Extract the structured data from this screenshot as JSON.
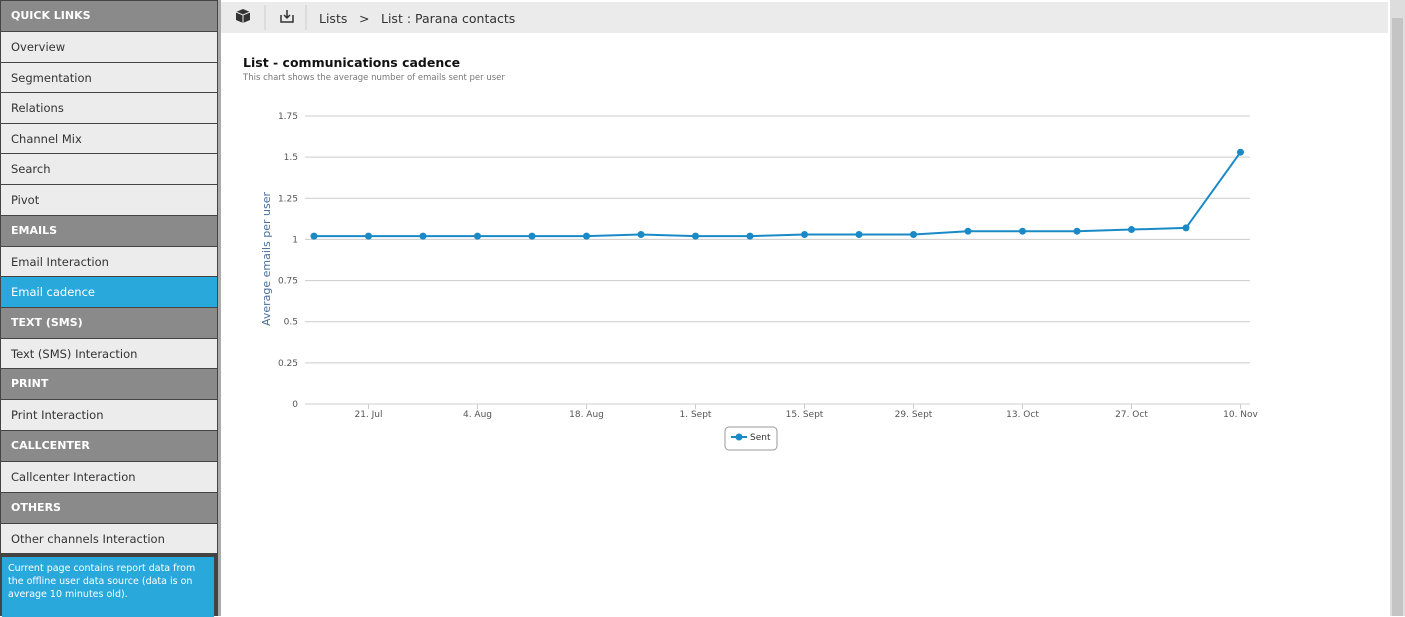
{
  "sidebar": {
    "groups": [
      {
        "title": "QUICK LINKS",
        "items": [
          "Overview",
          "Segmentation",
          "Relations",
          "Channel Mix",
          "Search",
          "Pivot"
        ]
      },
      {
        "title": "EMAILS",
        "items": [
          "Email Interaction",
          "Email cadence"
        ]
      },
      {
        "title": "TEXT (SMS)",
        "items": [
          "Text (SMS) Interaction"
        ]
      },
      {
        "title": "PRINT",
        "items": [
          "Print Interaction"
        ]
      },
      {
        "title": "CALLCENTER",
        "items": [
          "Callcenter Interaction"
        ]
      },
      {
        "title": "OTHERS",
        "items": [
          "Other channels Interaction"
        ]
      }
    ],
    "active": "Email cadence",
    "note": "Current page contains report data from the offline user data source (data is on average 10 minutes old)."
  },
  "breadcrumb": [
    "Lists",
    ">",
    "List : Parana contacts"
  ],
  "chart_data": {
    "type": "line",
    "title": "List - communications cadence",
    "subtitle": "This chart shows the average number of emails sent per user",
    "y_label": "Average emails per user",
    "categories": [
      null,
      "21. Jul",
      null,
      "4. Aug",
      null,
      "18. Aug",
      null,
      "1. Sept",
      null,
      "15. Sept",
      null,
      "29. Sept",
      null,
      "13. Oct",
      null,
      "27. Oct",
      null,
      "10. Nov"
    ],
    "series": [
      {
        "name": "Sent",
        "color": "#1a8ac6",
        "values": [
          1.02,
          1.02,
          1.02,
          1.02,
          1.02,
          1.02,
          1.03,
          1.02,
          1.02,
          1.03,
          1.03,
          1.03,
          1.05,
          1.05,
          1.05,
          1.06,
          1.07,
          1.53
        ]
      }
    ],
    "ylim": [
      0,
      1.75
    ],
    "yticks": [
      0,
      0.25,
      0.5,
      0.75,
      1,
      1.25,
      1.5,
      1.75
    ],
    "grid": true,
    "legend": "bottom"
  }
}
